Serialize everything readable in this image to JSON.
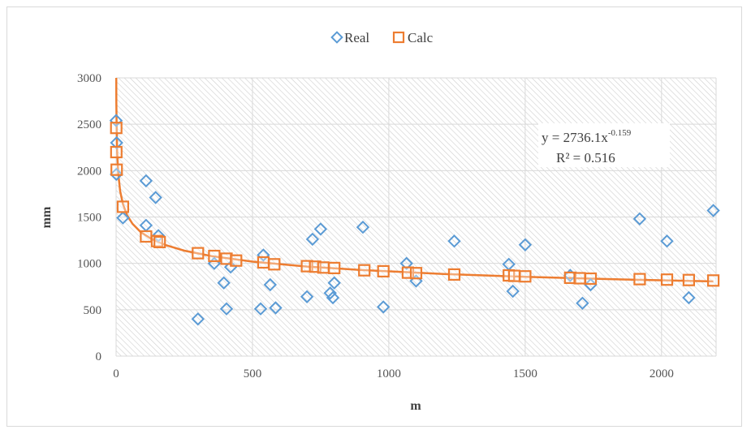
{
  "chart_data": {
    "type": "scatter",
    "title": "",
    "xlabel": "m",
    "ylabel": "mm",
    "xlim": [
      0,
      2200
    ],
    "ylim": [
      0,
      3000
    ],
    "xticks": [
      0,
      500,
      1000,
      1500,
      2000
    ],
    "yticks": [
      0,
      500,
      1000,
      1500,
      2000,
      2500,
      3000
    ],
    "xtick_labels": [
      "0",
      "500",
      "1000",
      "1500",
      "2000"
    ],
    "ytick_labels": [
      "0",
      "500",
      "1000",
      "1500",
      "2000",
      "2500",
      "3000"
    ],
    "grid": true,
    "legend_position": "top-center",
    "series": [
      {
        "name": "Real",
        "marker": "diamond",
        "color": "#5b9bd5",
        "points": [
          [
            0,
            2540
          ],
          [
            2,
            2300
          ],
          [
            1,
            1960
          ],
          [
            25,
            1490
          ],
          [
            110,
            1890
          ],
          [
            110,
            1410
          ],
          [
            145,
            1710
          ],
          [
            155,
            1300
          ],
          [
            300,
            400
          ],
          [
            360,
            1000
          ],
          [
            395,
            790
          ],
          [
            405,
            510
          ],
          [
            420,
            960
          ],
          [
            530,
            510
          ],
          [
            540,
            1090
          ],
          [
            565,
            770
          ],
          [
            585,
            520
          ],
          [
            700,
            640
          ],
          [
            720,
            1260
          ],
          [
            750,
            1370
          ],
          [
            785,
            680
          ],
          [
            795,
            630
          ],
          [
            800,
            790
          ],
          [
            905,
            1390
          ],
          [
            980,
            530
          ],
          [
            1065,
            1000
          ],
          [
            1100,
            810
          ],
          [
            1240,
            1240
          ],
          [
            1440,
            990
          ],
          [
            1455,
            700
          ],
          [
            1500,
            1200
          ],
          [
            1665,
            870
          ],
          [
            1710,
            570
          ],
          [
            1740,
            770
          ],
          [
            1920,
            1480
          ],
          [
            2020,
            1240
          ],
          [
            2100,
            630
          ],
          [
            2190,
            1570
          ]
        ]
      },
      {
        "name": "Calc",
        "marker": "square",
        "color": "#ed7d31",
        "points": [
          [
            0.5,
            2460
          ],
          [
            1,
            2200
          ],
          [
            2,
            2010
          ],
          [
            25,
            1610
          ],
          [
            110,
            1290
          ],
          [
            150,
            1240
          ],
          [
            160,
            1230
          ],
          [
            300,
            1110
          ],
          [
            360,
            1080
          ],
          [
            405,
            1050
          ],
          [
            440,
            1030
          ],
          [
            540,
            1010
          ],
          [
            580,
            990
          ],
          [
            700,
            970
          ],
          [
            730,
            965
          ],
          [
            760,
            955
          ],
          [
            800,
            950
          ],
          [
            910,
            925
          ],
          [
            980,
            915
          ],
          [
            1070,
            900
          ],
          [
            1100,
            895
          ],
          [
            1240,
            880
          ],
          [
            1440,
            870
          ],
          [
            1460,
            865
          ],
          [
            1500,
            860
          ],
          [
            1665,
            845
          ],
          [
            1700,
            840
          ],
          [
            1740,
            835
          ],
          [
            1920,
            830
          ],
          [
            2020,
            825
          ],
          [
            2100,
            820
          ],
          [
            2190,
            815
          ]
        ]
      }
    ],
    "trendline": {
      "type": "power",
      "coefficient": 2736.1,
      "exponent": -0.159,
      "equation_text": "y = 2736.1x",
      "equation_exponent": "-0.159",
      "r2_text": "R² = 0.516",
      "color": "#ed7d31"
    }
  }
}
